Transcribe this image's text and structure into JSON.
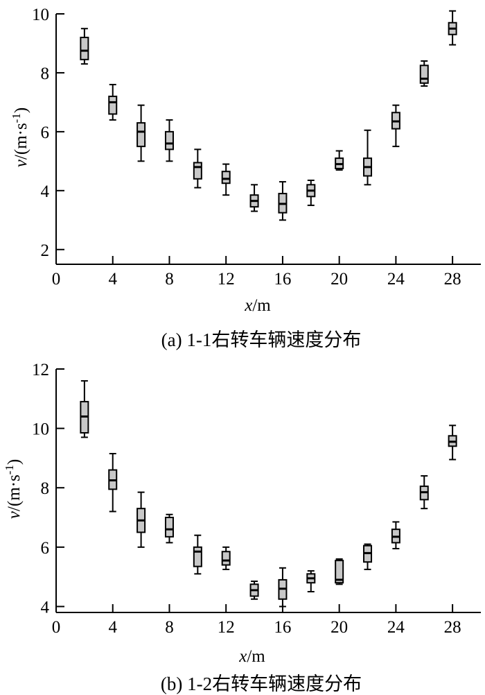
{
  "chart_data": [
    {
      "type": "boxplot",
      "caption": "(a) 1-1右转车辆速度分布",
      "xlabel": "x/m",
      "ylabel": "v/(m·s-1)",
      "xlim": [
        0,
        30
      ],
      "ylim": [
        1.5,
        10
      ],
      "xticks": [
        "0",
        "4",
        "8",
        "12",
        "16",
        "20",
        "24",
        "28"
      ],
      "yticks": [
        "2",
        "4",
        "6",
        "8",
        "10"
      ],
      "boxes": [
        {
          "x": 2,
          "min": 8.3,
          "q1": 8.45,
          "median": 8.75,
          "q3": 9.2,
          "max": 9.5
        },
        {
          "x": 4,
          "min": 6.4,
          "q1": 6.6,
          "median": 7.0,
          "q3": 7.2,
          "max": 7.6
        },
        {
          "x": 6,
          "min": 5.0,
          "q1": 5.5,
          "median": 6.0,
          "q3": 6.3,
          "max": 6.9
        },
        {
          "x": 8,
          "min": 5.0,
          "q1": 5.4,
          "median": 5.6,
          "q3": 6.0,
          "max": 6.4
        },
        {
          "x": 10,
          "min": 4.1,
          "q1": 4.4,
          "median": 4.8,
          "q3": 4.95,
          "max": 5.4
        },
        {
          "x": 12,
          "min": 3.85,
          "q1": 4.25,
          "median": 4.4,
          "q3": 4.65,
          "max": 4.9
        },
        {
          "x": 14,
          "min": 3.3,
          "q1": 3.45,
          "median": 3.65,
          "q3": 3.85,
          "max": 4.2
        },
        {
          "x": 16,
          "min": 3.0,
          "q1": 3.25,
          "median": 3.55,
          "q3": 3.9,
          "max": 4.3
        },
        {
          "x": 18,
          "min": 3.5,
          "q1": 3.8,
          "median": 4.0,
          "q3": 4.2,
          "max": 4.35
        },
        {
          "x": 20,
          "min": 4.7,
          "q1": 4.75,
          "median": 4.9,
          "q3": 5.1,
          "max": 5.35
        },
        {
          "x": 22,
          "min": 4.2,
          "q1": 4.5,
          "median": 4.8,
          "q3": 5.1,
          "max": 6.05
        },
        {
          "x": 24,
          "min": 5.5,
          "q1": 6.1,
          "median": 6.35,
          "q3": 6.65,
          "max": 6.9
        },
        {
          "x": 26,
          "min": 7.55,
          "q1": 7.65,
          "median": 7.8,
          "q3": 8.25,
          "max": 8.4
        },
        {
          "x": 28,
          "min": 8.95,
          "q1": 9.3,
          "median": 9.5,
          "q3": 9.7,
          "max": 10.1
        }
      ]
    },
    {
      "type": "boxplot",
      "caption": "(b) 1-2右转车辆速度分布",
      "xlabel": "x/m",
      "ylabel": "v/(m·s-1)",
      "xlim": [
        0,
        30
      ],
      "ylim": [
        3.8,
        12
      ],
      "xticks": [
        "0",
        "4",
        "8",
        "12",
        "16",
        "20",
        "24",
        "28"
      ],
      "yticks": [
        "4",
        "6",
        "8",
        "10",
        "12"
      ],
      "boxes": [
        {
          "x": 2,
          "min": 9.7,
          "q1": 9.85,
          "median": 10.4,
          "q3": 10.9,
          "max": 11.6
        },
        {
          "x": 4,
          "min": 7.2,
          "q1": 7.95,
          "median": 8.25,
          "q3": 8.6,
          "max": 9.15
        },
        {
          "x": 6,
          "min": 6.0,
          "q1": 6.5,
          "median": 6.9,
          "q3": 7.3,
          "max": 7.85
        },
        {
          "x": 8,
          "min": 6.15,
          "q1": 6.35,
          "median": 6.6,
          "q3": 7.0,
          "max": 7.1
        },
        {
          "x": 10,
          "min": 5.1,
          "q1": 5.35,
          "median": 5.85,
          "q3": 6.0,
          "max": 6.4
        },
        {
          "x": 12,
          "min": 5.25,
          "q1": 5.4,
          "median": 5.55,
          "q3": 5.85,
          "max": 6.0
        },
        {
          "x": 14,
          "min": 4.25,
          "q1": 4.35,
          "median": 4.55,
          "q3": 4.75,
          "max": 4.85
        },
        {
          "x": 16,
          "min": 4.0,
          "q1": 4.25,
          "median": 4.6,
          "q3": 4.9,
          "max": 5.3
        },
        {
          "x": 18,
          "min": 4.5,
          "q1": 4.8,
          "median": 4.95,
          "q3": 5.1,
          "max": 5.2
        },
        {
          "x": 20,
          "min": 4.75,
          "q1": 4.8,
          "median": 4.9,
          "q3": 5.55,
          "max": 5.6
        },
        {
          "x": 22,
          "min": 5.25,
          "q1": 5.5,
          "median": 5.8,
          "q3": 6.05,
          "max": 6.1
        },
        {
          "x": 24,
          "min": 5.95,
          "q1": 6.15,
          "median": 6.35,
          "q3": 6.6,
          "max": 6.85
        },
        {
          "x": 26,
          "min": 7.3,
          "q1": 7.6,
          "median": 7.85,
          "q3": 8.05,
          "max": 8.4
        },
        {
          "x": 28,
          "min": 8.95,
          "q1": 9.4,
          "median": 9.55,
          "q3": 9.75,
          "max": 10.1
        }
      ]
    }
  ]
}
